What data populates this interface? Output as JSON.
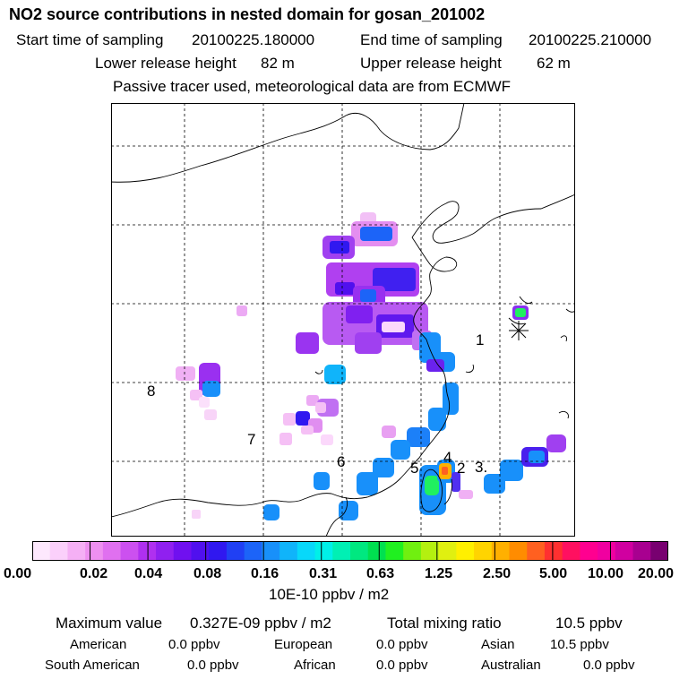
{
  "header": {
    "title": "NO2 source contributions in nested domain for gosan_201002",
    "start_label": "Start time of sampling",
    "start_value": "20100225.180000",
    "end_label": "End time of sampling",
    "end_value": "20100225.210000",
    "lower_label": "Lower release height",
    "lower_value": "82 m",
    "upper_label": "Upper release height",
    "upper_value": "62 m",
    "note": "Passive tracer used, meteorological data are from ECMWF"
  },
  "map": {
    "region_labels": [
      "1",
      "2",
      "3.",
      "4",
      "5",
      "6",
      "7",
      "8"
    ],
    "receptor_marker": "asterisk-marker"
  },
  "colorbar": {
    "colors": [
      "#fde8fd",
      "#fbd0fb",
      "#f5b0f5",
      "#ee90f0",
      "#e070f0",
      "#cc50f0",
      "#b030f0",
      "#9020f0",
      "#7010f0",
      "#5010ee",
      "#3018f0",
      "#2040f4",
      "#1c64f8",
      "#1890fa",
      "#10b4fa",
      "#08d8fa",
      "#00f0e8",
      "#00f0b4",
      "#00e880",
      "#00e050",
      "#20f020",
      "#70f010",
      "#b4f010",
      "#e0f010",
      "#fff000",
      "#ffd400",
      "#ffb000",
      "#ff8c00",
      "#ff6020",
      "#ff3030",
      "#ff1060",
      "#ff0090",
      "#f000a0",
      "#d000a0",
      "#a80090",
      "#780070"
    ],
    "tick_labels": [
      "0.00",
      "0.02",
      "0.04",
      "0.08",
      "0.16",
      "0.31",
      "0.63",
      "1.25",
      "2.50",
      "5.00",
      "10.00",
      "20.00"
    ],
    "units": "10E-10 ppbv / m2"
  },
  "summary": {
    "max_label": "Maximum value",
    "max_value": "0.327E-09 ppbv / m2",
    "total_label": "Total mixing ratio",
    "total_value": "10.5 ppbv",
    "regions": [
      {
        "name": "American",
        "value": "0.0 ppbv"
      },
      {
        "name": "European",
        "value": "0.0 ppbv"
      },
      {
        "name": "Asian",
        "value": "10.5 ppbv"
      },
      {
        "name": "South American",
        "value": "0.0 ppbv"
      },
      {
        "name": "African",
        "value": "0.0 ppbv"
      },
      {
        "name": "Australian",
        "value": "0.0 ppbv"
      }
    ]
  }
}
